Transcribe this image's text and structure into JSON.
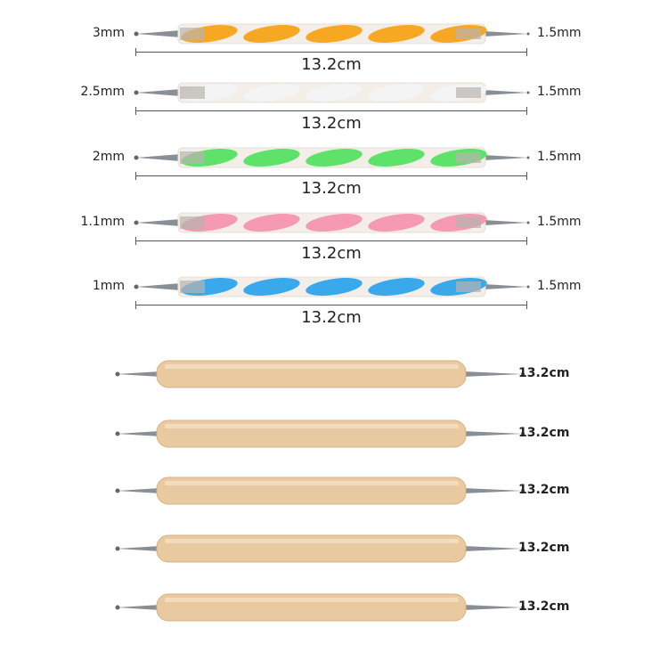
{
  "acrylic_tools": [
    {
      "left_tip": "3mm",
      "right_tip": "1.5mm",
      "length": "13.2cm",
      "color": "#f7a823"
    },
    {
      "left_tip": "2.5mm",
      "right_tip": "1.5mm",
      "length": "13.2cm",
      "color": "#f4f4f4"
    },
    {
      "left_tip": "2mm",
      "right_tip": "1.5mm",
      "length": "13.2cm",
      "color": "#5fe26a"
    },
    {
      "left_tip": "1.1mm",
      "right_tip": "1.5mm",
      "length": "13.2cm",
      "color": "#f59ab0"
    },
    {
      "left_tip": "1mm",
      "right_tip": "1.5mm",
      "length": "13.2cm",
      "color": "#3aa9ec"
    }
  ],
  "wooden_tools": [
    {
      "length": "13.2cm"
    },
    {
      "length": "13.2cm"
    },
    {
      "length": "13.2cm"
    },
    {
      "length": "13.2cm"
    },
    {
      "length": "13.2cm"
    }
  ],
  "colors": {
    "wood": "#e9c9a0",
    "metal": "#8a8f96",
    "dimension_line": "#555555"
  }
}
